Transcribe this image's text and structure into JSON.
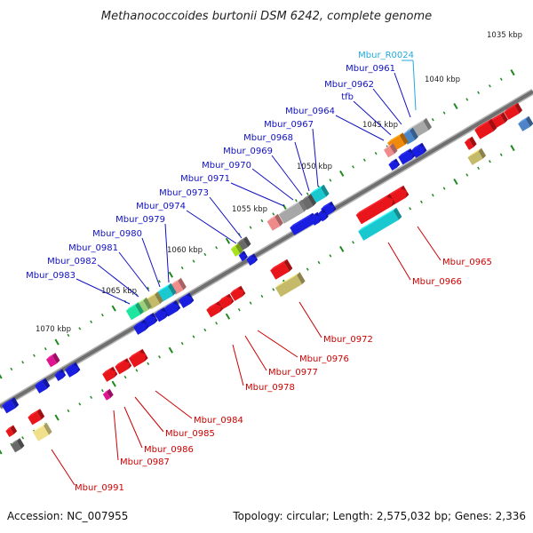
{
  "title": "Methanococcoides burtonii DSM 6242, complete genome",
  "footer": {
    "accession": "Accession: NC_007955",
    "topology": "Topology: circular; Length: 2,575,032 bp; Genes: 2,336"
  },
  "colors": {
    "backbone": "#7b7b7b",
    "tick": "#1f8a1f",
    "top_label": "#1010c0",
    "bottom_label": "#cc0000",
    "rna_label": "#22aadd"
  },
  "kbp_labels": [
    "1035 kbp",
    "1040 kbp",
    "1045 kbp",
    "1050 kbp",
    "1055 kbp",
    "1060 kbp",
    "1065 kbp",
    "1070 kbp"
  ],
  "top_labels": [
    "Mbur_R0024",
    "Mbur_0961",
    "Mbur_0962",
    "tfb",
    "Mbur_0964",
    "Mbur_0967",
    "Mbur_0968",
    "Mbur_0969",
    "Mbur_0970",
    "Mbur_0971",
    "Mbur_0973",
    "Mbur_0974",
    "Mbur_0979",
    "Mbur_0980",
    "Mbur_0981",
    "Mbur_0982",
    "Mbur_0983"
  ],
  "bottom_labels": [
    "Mbur_0965",
    "Mbur_0966",
    "Mbur_0972",
    "Mbur_0976",
    "Mbur_0977",
    "Mbur_0978",
    "Mbur_0984",
    "Mbur_0985",
    "Mbur_0986",
    "Mbur_0987",
    "Mbur_0991"
  ]
}
